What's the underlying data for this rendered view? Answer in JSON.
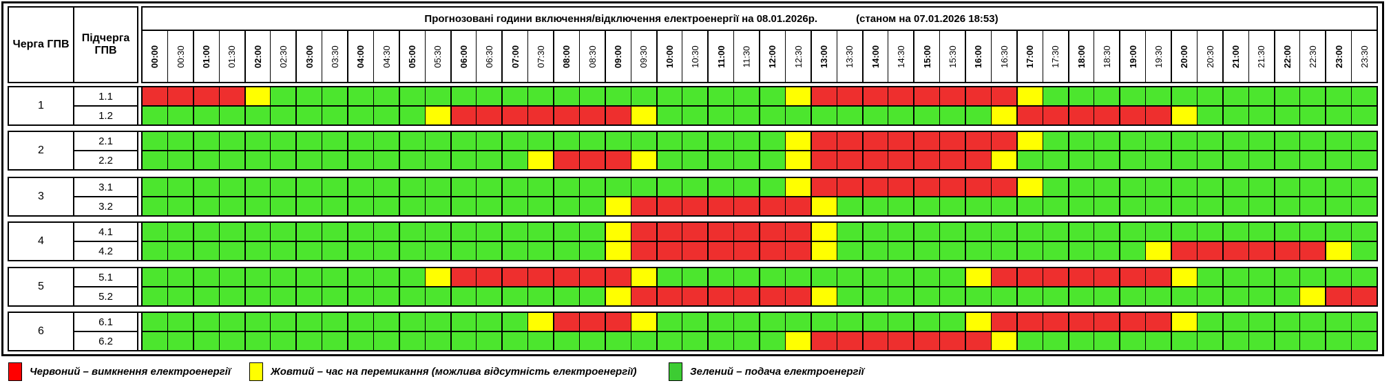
{
  "title": "Прогнозовані години включення/відключення електроенергії на 08.01.2026р.",
  "as_of": "(станом на 07.01.2026 18:53)",
  "columns": {
    "queue": "Черга ГПВ",
    "subqueue": "Підчерга ГПВ"
  },
  "times": [
    "00:00",
    "00:30",
    "01:00",
    "01:30",
    "02:00",
    "02:30",
    "03:00",
    "03:30",
    "04:00",
    "04:30",
    "05:00",
    "05:30",
    "06:00",
    "06:30",
    "07:00",
    "07:30",
    "08:00",
    "08:30",
    "09:00",
    "09:30",
    "10:00",
    "10:30",
    "11:00",
    "11:30",
    "12:00",
    "12:30",
    "13:00",
    "13:30",
    "14:00",
    "14:30",
    "15:00",
    "15:30",
    "16:00",
    "16:30",
    "17:00",
    "17:30",
    "18:00",
    "18:30",
    "19:00",
    "19:30",
    "20:00",
    "20:30",
    "21:00",
    "21:30",
    "22:00",
    "22:30",
    "23:00",
    "23:30"
  ],
  "state_colors": {
    "R": "#ee2f2e",
    "Y": "#ffff00",
    "G": "#4ce62e"
  },
  "chart_data": {
    "type": "heatmap",
    "x": "times (48 half-hour slots)",
    "legend_states": {
      "R": "вимкнення",
      "Y": "перемикання",
      "G": "подача"
    },
    "rows": [
      "1.1",
      "1.2",
      "2.1",
      "2.2",
      "3.1",
      "3.2",
      "4.1",
      "4.2",
      "5.1",
      "5.2",
      "6.1",
      "6.2"
    ]
  },
  "groups": [
    {
      "queue": "1",
      "rows": [
        {
          "label": "1.1",
          "slots": "RRRRYGGGGGGGGGGGGGGGGGGGGYRRRRRRRRYGGGGGGGGGGGGG"
        },
        {
          "label": "1.2",
          "slots": "GGGGGGGGGGGYRRRRRRRYGGGGGGGGGGGGGYRRRRRRYGGGGGGG"
        }
      ]
    },
    {
      "queue": "2",
      "rows": [
        {
          "label": "2.1",
          "slots": "GGGGGGGGGGGGGGGGGGGGGGGGGYRRRRRRRRYGGGGGGGGGGGGG"
        },
        {
          "label": "2.2",
          "slots": "GGGGGGGGGGGGGGGYRRRYGGGGGYRRRRRRRYGGGGGGGGGGGGGG"
        }
      ]
    },
    {
      "queue": "3",
      "rows": [
        {
          "label": "3.1",
          "slots": "GGGGGGGGGGGGGGGGGGGGGGGGGYRRRRRRRRYGGGGGGGGGGGGG"
        },
        {
          "label": "3.2",
          "slots": "GGGGGGGGGGGGGGGGGGYRRRRRRRYGGGGGGGGGGGGGGGGGGGGG"
        }
      ]
    },
    {
      "queue": "4",
      "rows": [
        {
          "label": "4.1",
          "slots": "GGGGGGGGGGGGGGGGGGYRRRRRRRYGGGGGGGGGGGGGGGGGGGGG"
        },
        {
          "label": "4.2",
          "slots": "GGGGGGGGGGGGGGGGGGYRRRRRRRYGGGGGGGGGGGGYRRRRRRYG"
        }
      ]
    },
    {
      "queue": "5",
      "rows": [
        {
          "label": "5.1",
          "slots": "GGGGGGGGGGGYRRRRRRRYGGGGGGGGGGGGYRRRRRRRYGGGGGGG"
        },
        {
          "label": "5.2",
          "slots": "GGGGGGGGGGGGGGGGGGYRRRRRRRYGGGGGGGGGGGGGGGGGGYRR"
        }
      ]
    },
    {
      "queue": "6",
      "rows": [
        {
          "label": "6.1",
          "slots": "GGGGGGGGGGGGGGGYRRRYGGGGGGGGGGGGYRRRRRRRYGGGGGGG"
        },
        {
          "label": "6.2",
          "slots": "GGGGGGGGGGGGGGGGGGGGGGGGGYRRRRRRRYGGGGGGGGGGGGGG"
        }
      ]
    }
  ],
  "legend": [
    {
      "color": "#ff0000",
      "label": "Червоний – вимкнення електроенергії"
    },
    {
      "color": "#ffff00",
      "label": "Жовтий – час на перемикання (можлива відсутність електроенергії)"
    },
    {
      "color": "#3dcc33",
      "label": "Зелений – подача електроенергії"
    }
  ]
}
